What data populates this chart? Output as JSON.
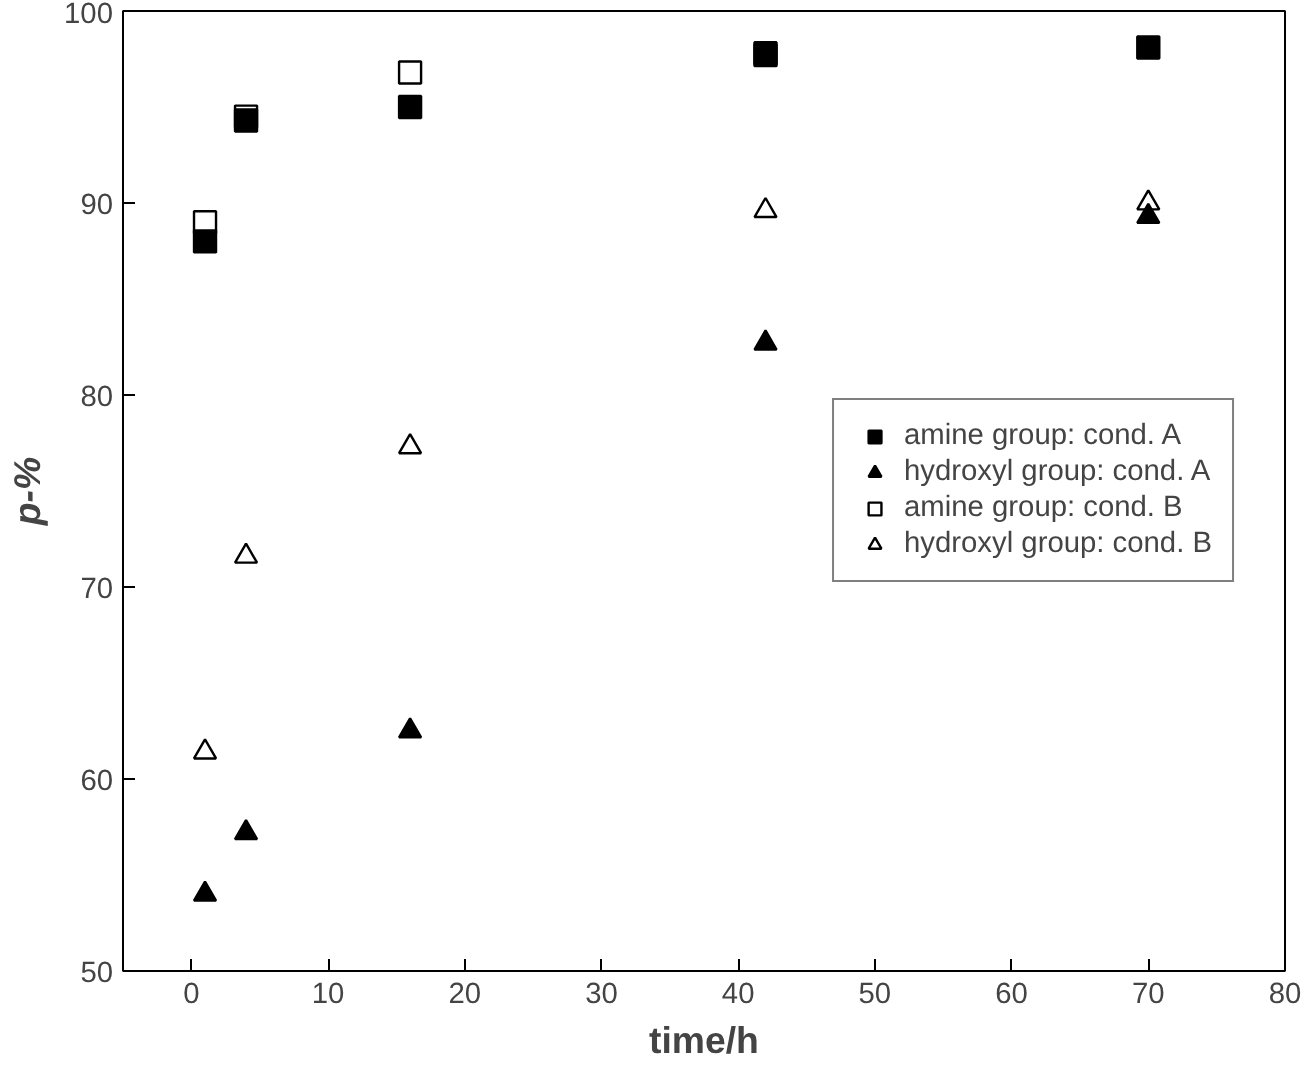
{
  "chart_data": {
    "type": "scatter",
    "xlabel": "time/h",
    "ylabel": "p-%",
    "xlim": [
      -5,
      80
    ],
    "ylim": [
      50,
      100
    ],
    "xticks": [
      0,
      10,
      20,
      30,
      40,
      50,
      60,
      70,
      80
    ],
    "yticks": [
      50,
      60,
      70,
      80,
      90,
      100
    ],
    "grid": false,
    "legend": "right",
    "x": [
      1,
      4,
      16,
      42,
      70
    ],
    "series": [
      {
        "name": "amine group: cond. A",
        "color": "#000000",
        "marker": "square",
        "values": [
          88,
          94.3,
          95,
          97.7,
          98.1
        ]
      },
      {
        "name": "hydroxyl group: cond. A",
        "color": "#000000",
        "marker": "triangle",
        "values": [
          54,
          57.2,
          62.5,
          82.7,
          89.3
        ]
      },
      {
        "name": "amine group: cond. B",
        "color": "#000000",
        "marker": "square",
        "values": [
          89,
          94.5,
          96.8,
          97.8,
          null
        ]
      },
      {
        "name": "hydroxyl group: cond. B",
        "color": "#000000",
        "marker": "triangle",
        "values": [
          61.4,
          71.6,
          77.3,
          89.6,
          90
        ]
      }
    ]
  }
}
